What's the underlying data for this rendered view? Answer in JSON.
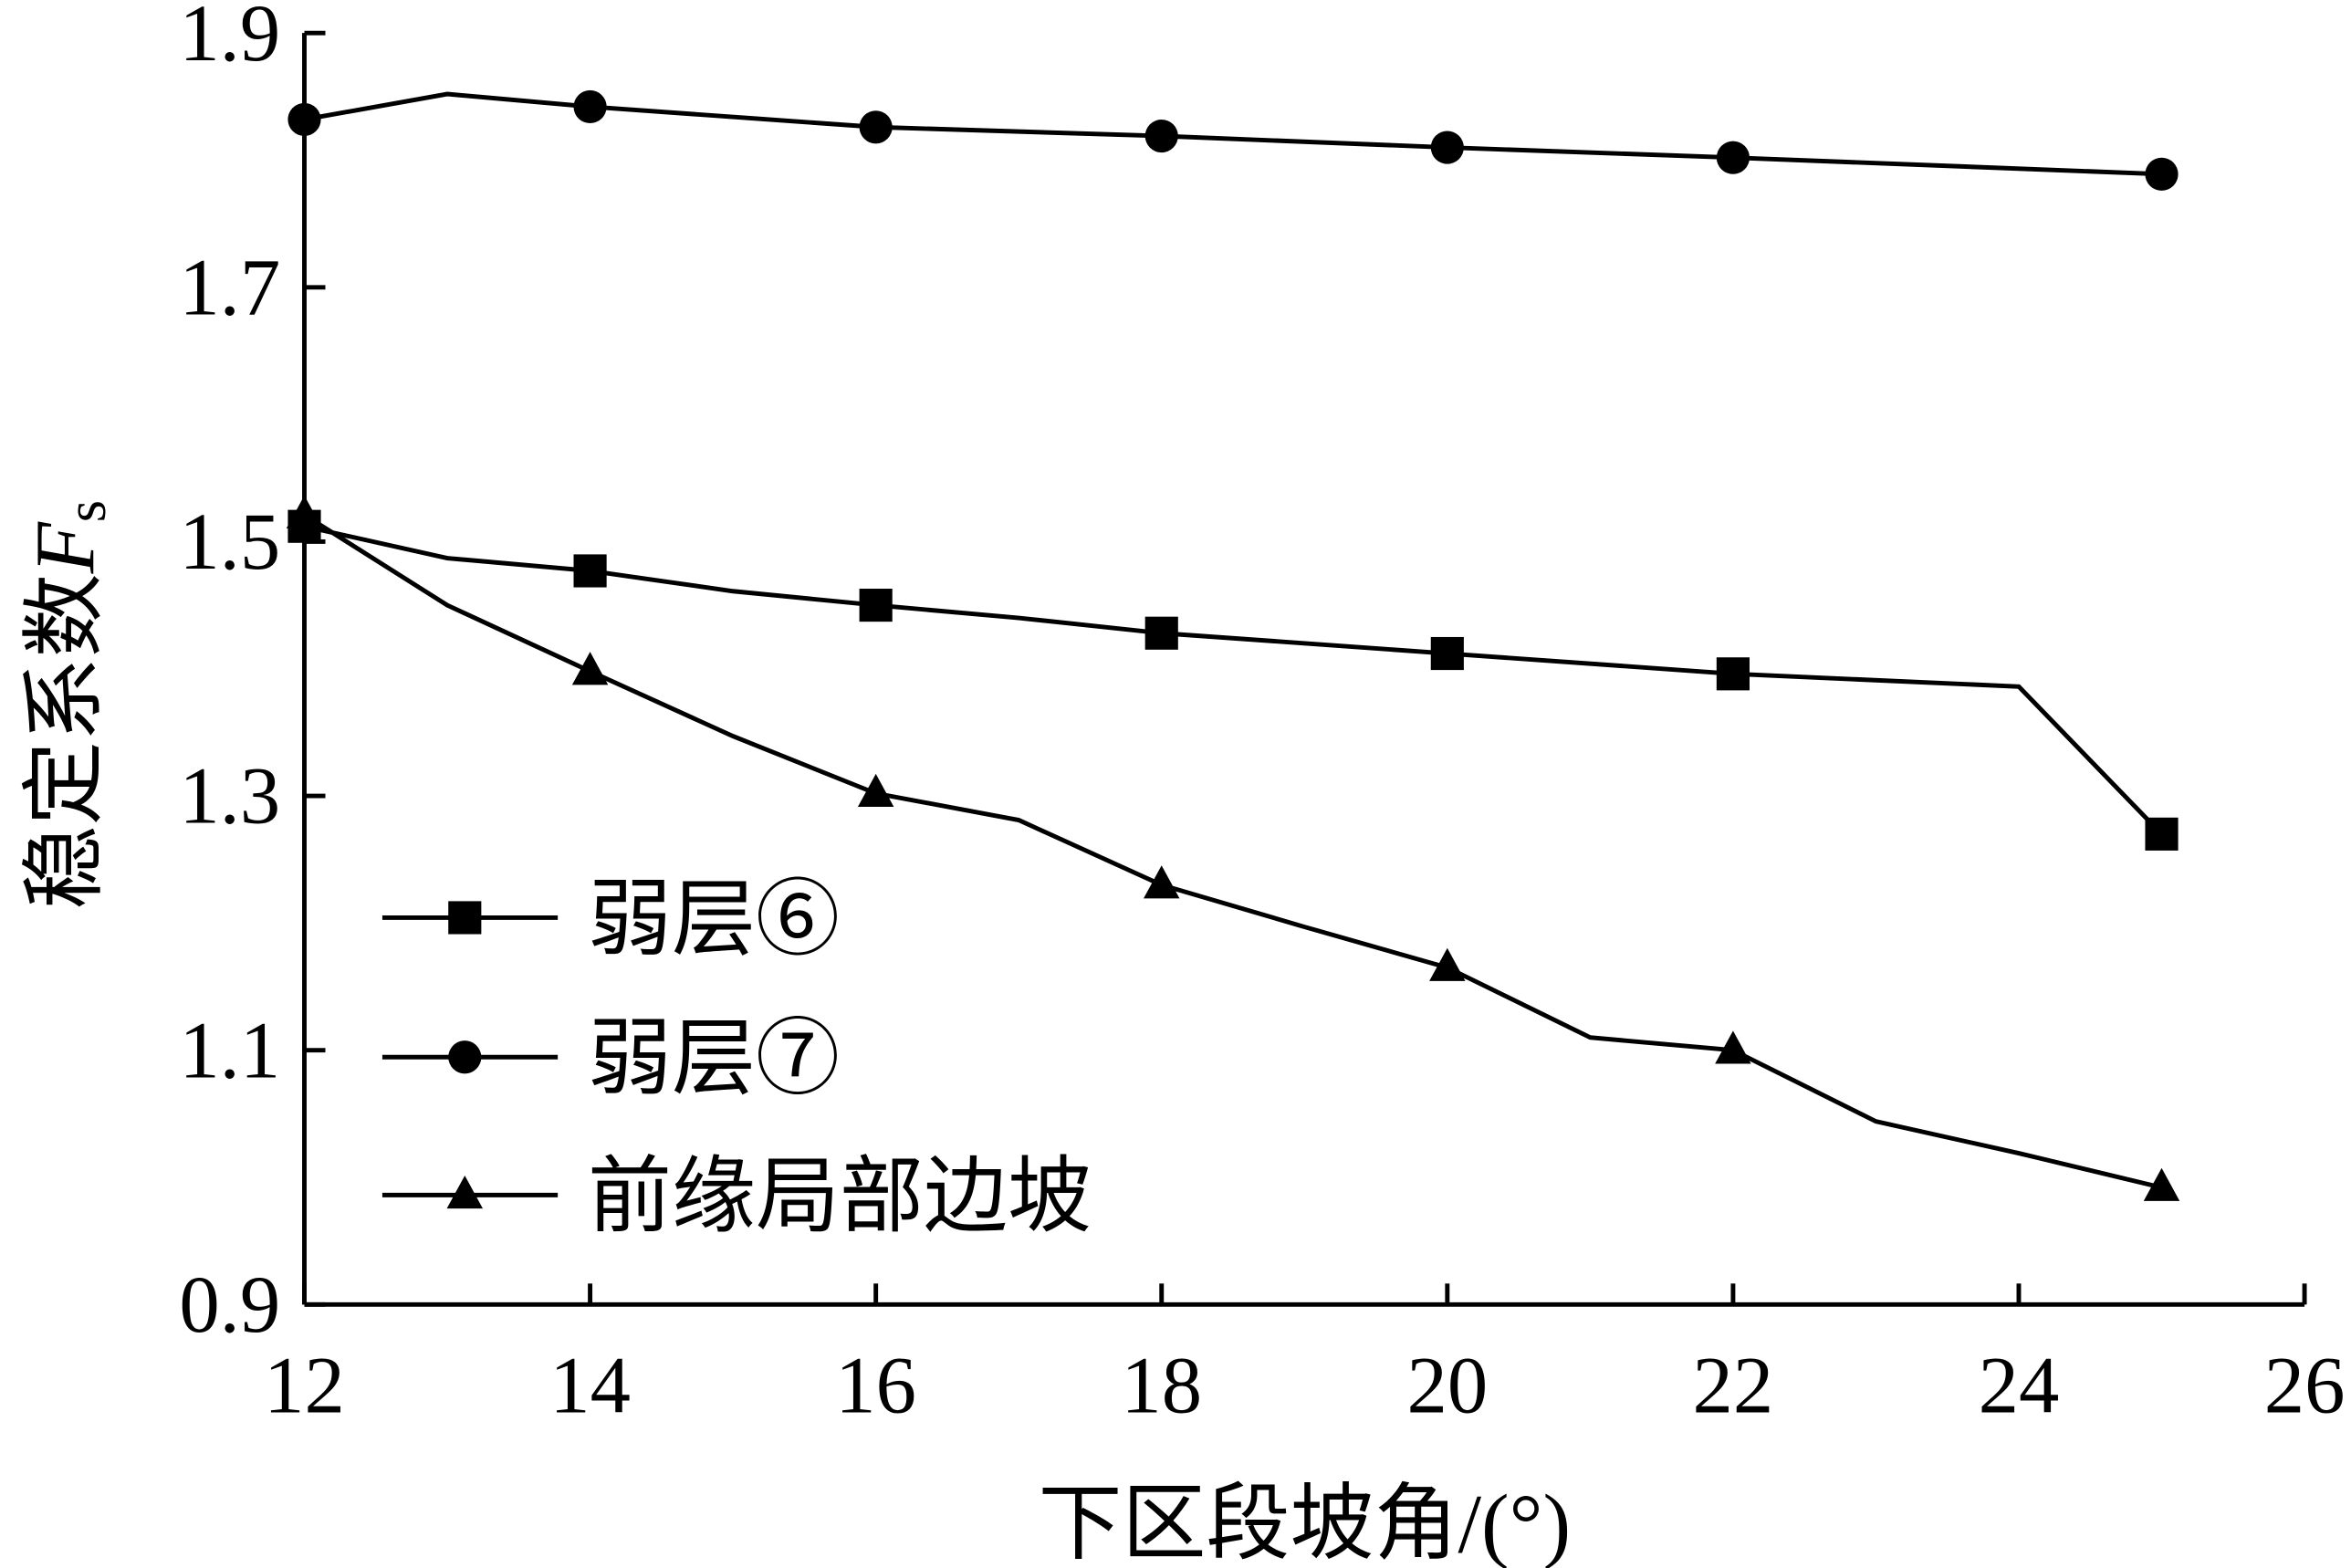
{
  "chart_data": {
    "type": "line",
    "title": "",
    "xlabel": "下区段坡角/(°)",
    "ylabel": "稳定系数",
    "ylabel_symbol": "F",
    "ylabel_sub": "s",
    "xlim": [
      12,
      26
    ],
    "ylim": [
      0.9,
      1.9
    ],
    "xticks": [
      "12",
      "14",
      "16",
      "18",
      "20",
      "22",
      "24",
      "26"
    ],
    "yticks": [
      "0.9",
      "1.1",
      "1.3",
      "1.5",
      "1.7",
      "1.9"
    ],
    "grid": false,
    "legend_position": "bottom-left",
    "series": [
      {
        "name": "弱层⑥",
        "marker": "square",
        "x": [
          12,
          13,
          14,
          15,
          16,
          17,
          18,
          20,
          22,
          24,
          25
        ],
        "y": [
          1.512,
          1.487,
          1.477,
          1.461,
          1.45,
          1.44,
          1.428,
          1.412,
          1.396,
          1.386,
          1.27
        ],
        "marker_x": [
          12,
          14,
          16,
          18,
          20,
          22,
          25
        ]
      },
      {
        "name": "弱层⑦",
        "marker": "circle",
        "x": [
          12,
          13,
          14,
          16,
          18,
          20,
          22,
          25
        ],
        "y": [
          1.832,
          1.852,
          1.842,
          1.826,
          1.819,
          1.81,
          1.802,
          1.789
        ],
        "marker_x": [
          12,
          14,
          16,
          18,
          20,
          22,
          25
        ]
      },
      {
        "name": "前缘局部边坡",
        "marker": "triangle",
        "x": [
          12,
          13,
          14,
          15,
          16,
          17,
          18,
          19,
          20,
          21,
          22,
          23,
          24,
          25
        ],
        "y": [
          1.521,
          1.45,
          1.398,
          1.347,
          1.302,
          1.281,
          1.23,
          1.197,
          1.165,
          1.11,
          1.1,
          1.044,
          1.019,
          0.992
        ],
        "marker_x": [
          12,
          14,
          16,
          18,
          20,
          22,
          25
        ]
      }
    ]
  }
}
